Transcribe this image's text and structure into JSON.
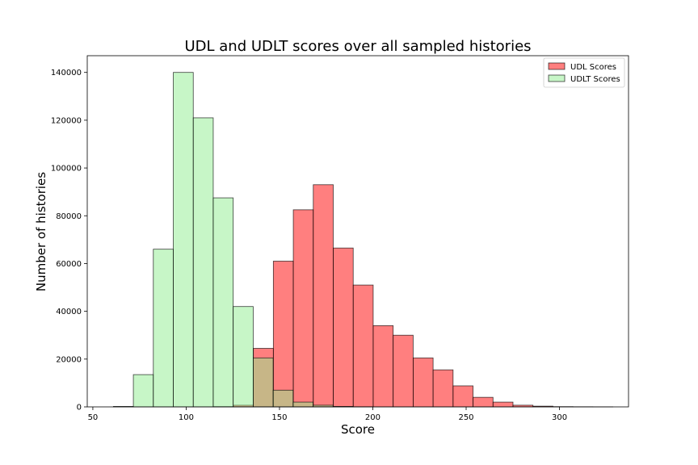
{
  "chart_data": {
    "type": "bar",
    "title": "UDL and UDLT scores over all sampled histories",
    "xlabel": "Score",
    "ylabel": "Number of histories",
    "xlim": [
      47,
      337
    ],
    "ylim": [
      0,
      147000
    ],
    "x_ticks": [
      50,
      100,
      150,
      200,
      250,
      300
    ],
    "y_ticks": [
      0,
      20000,
      40000,
      60000,
      80000,
      100000,
      120000,
      140000
    ],
    "grid": false,
    "legend_position": "top-right",
    "bin_width": 10.7,
    "series": [
      {
        "name": "UDL Scores",
        "color": "#ff0000",
        "opacity": 0.5,
        "bins": [
          {
            "start": 114.6,
            "value": 100
          },
          {
            "start": 125.3,
            "value": 700
          },
          {
            "start": 136.0,
            "value": 24500
          },
          {
            "start": 146.7,
            "value": 61000
          },
          {
            "start": 157.4,
            "value": 82500
          },
          {
            "start": 168.1,
            "value": 93000
          },
          {
            "start": 178.8,
            "value": 66500
          },
          {
            "start": 189.5,
            "value": 51000
          },
          {
            "start": 200.2,
            "value": 34000
          },
          {
            "start": 210.9,
            "value": 30000
          },
          {
            "start": 221.6,
            "value": 20500
          },
          {
            "start": 232.3,
            "value": 15500
          },
          {
            "start": 243.0,
            "value": 8800
          },
          {
            "start": 253.7,
            "value": 4000
          },
          {
            "start": 264.4,
            "value": 2000
          },
          {
            "start": 275.1,
            "value": 700
          },
          {
            "start": 285.8,
            "value": 300
          },
          {
            "start": 296.5,
            "value": 100
          },
          {
            "start": 307.2,
            "value": 50
          },
          {
            "start": 317.9,
            "value": 20
          }
        ]
      },
      {
        "name": "UDLT Scores",
        "color": "#90ee90",
        "opacity": 0.5,
        "bins": [
          {
            "start": 61.0,
            "value": 200
          },
          {
            "start": 71.7,
            "value": 13500
          },
          {
            "start": 82.4,
            "value": 66000
          },
          {
            "start": 93.1,
            "value": 140000
          },
          {
            "start": 103.8,
            "value": 121000
          },
          {
            "start": 114.5,
            "value": 87500
          },
          {
            "start": 125.2,
            "value": 42000
          },
          {
            "start": 135.9,
            "value": 20500
          },
          {
            "start": 146.6,
            "value": 7000
          },
          {
            "start": 157.3,
            "value": 2000
          },
          {
            "start": 168.0,
            "value": 700
          },
          {
            "start": 178.7,
            "value": 200
          },
          {
            "start": 189.4,
            "value": 50
          }
        ]
      }
    ]
  }
}
